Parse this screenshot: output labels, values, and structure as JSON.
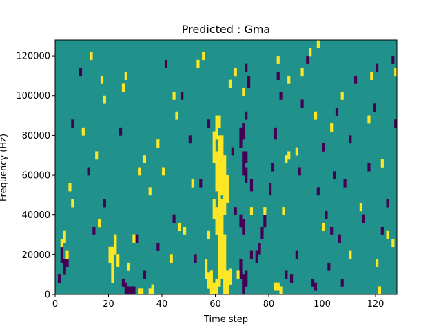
{
  "chart_data": {
    "type": "heatmap",
    "title": "Predicted : Gma",
    "xlabel": "Time step",
    "ylabel": "Frequency (Hz)",
    "xlim": [
      0,
      128
    ],
    "ylim": [
      0,
      128000
    ],
    "xticks": [
      0,
      20,
      40,
      60,
      80,
      100,
      120
    ],
    "yticks": [
      0,
      20000,
      40000,
      60000,
      80000,
      100000,
      120000
    ],
    "n_time_steps": 128,
    "n_freq_bins": 128,
    "levels": {
      "low": -1,
      "mid": 0,
      "high": 1
    },
    "colors": {
      "low": "#440154",
      "mid": "#21918c",
      "high": "#fde725"
    },
    "background_level": 0,
    "grid": false,
    "yellow_segments": [
      [
        60,
        0,
        8
      ],
      [
        59,
        0,
        6
      ],
      [
        58,
        0,
        12
      ],
      [
        57,
        3,
        8
      ],
      [
        56,
        8,
        10
      ],
      [
        61,
        4,
        28
      ],
      [
        62,
        8,
        40
      ],
      [
        63,
        0,
        30
      ],
      [
        64,
        0,
        12
      ],
      [
        65,
        5,
        8
      ],
      [
        60,
        30,
        14
      ],
      [
        59,
        38,
        10
      ],
      [
        60,
        52,
        20
      ],
      [
        59,
        66,
        16
      ],
      [
        60,
        78,
        12
      ],
      [
        61,
        30,
        50
      ],
      [
        62,
        50,
        30
      ],
      [
        63,
        40,
        30
      ],
      [
        64,
        46,
        14
      ],
      [
        61,
        84,
        6
      ],
      [
        20,
        16,
        8
      ],
      [
        21,
        10,
        14
      ],
      [
        22,
        20,
        10
      ],
      [
        21,
        6,
        6
      ],
      [
        23,
        14,
        6
      ],
      [
        31,
        0,
        3
      ],
      [
        32,
        0,
        3
      ],
      [
        35,
        0,
        3
      ],
      [
        36,
        0,
        5
      ],
      [
        82,
        2,
        4
      ],
      [
        83,
        2,
        4
      ],
      [
        84,
        0,
        4
      ],
      [
        85,
        40,
        4
      ],
      [
        86,
        66,
        4
      ],
      [
        87,
        68,
        4
      ],
      [
        2,
        24,
        4
      ],
      [
        3,
        26,
        6
      ],
      [
        4,
        18,
        4
      ],
      [
        5,
        52,
        4
      ],
      [
        6,
        44,
        4
      ],
      [
        16,
        34,
        4
      ],
      [
        17,
        106,
        4
      ],
      [
        18,
        96,
        4
      ],
      [
        25,
        102,
        4
      ],
      [
        26,
        108,
        4
      ],
      [
        27,
        12,
        4
      ],
      [
        29,
        26,
        4
      ],
      [
        31,
        60,
        4
      ],
      [
        33,
        66,
        4
      ],
      [
        35,
        50,
        4
      ],
      [
        38,
        74,
        4
      ],
      [
        40,
        60,
        4
      ],
      [
        44,
        98,
        4
      ],
      [
        45,
        88,
        4
      ],
      [
        48,
        30,
        4
      ],
      [
        51,
        54,
        4
      ],
      [
        53,
        114,
        4
      ],
      [
        55,
        118,
        4
      ],
      [
        57,
        28,
        4
      ],
      [
        65,
        104,
        4
      ],
      [
        67,
        110,
        4
      ],
      [
        70,
        100,
        4
      ],
      [
        73,
        40,
        4
      ],
      [
        78,
        40,
        4
      ],
      [
        83,
        116,
        4
      ],
      [
        87,
        106,
        4
      ],
      [
        90,
        70,
        4
      ],
      [
        92,
        110,
        4
      ],
      [
        95,
        120,
        4
      ],
      [
        97,
        88,
        4
      ],
      [
        98,
        124,
        4
      ],
      [
        100,
        32,
        4
      ],
      [
        103,
        82,
        4
      ],
      [
        107,
        98,
        4
      ],
      [
        110,
        18,
        4
      ],
      [
        114,
        42,
        4
      ],
      [
        117,
        86,
        4
      ],
      [
        118,
        108,
        4
      ],
      [
        120,
        14,
        4
      ],
      [
        121,
        0,
        4
      ],
      [
        122,
        64,
        4
      ],
      [
        124,
        28,
        4
      ],
      [
        126,
        24,
        4
      ],
      [
        127,
        110,
        4
      ],
      [
        10,
        80,
        4
      ],
      [
        13,
        118,
        4
      ],
      [
        15,
        68,
        4
      ],
      [
        43,
        16,
        4
      ],
      [
        46,
        32,
        4
      ],
      [
        68,
        8,
        4
      ]
    ],
    "purple_segments": [
      [
        27,
        0,
        4
      ],
      [
        28,
        0,
        4
      ],
      [
        29,
        0,
        4
      ],
      [
        26,
        0,
        6
      ],
      [
        25,
        4,
        4
      ],
      [
        3,
        10,
        8
      ],
      [
        4,
        14,
        8
      ],
      [
        2,
        16,
        8
      ],
      [
        1,
        6,
        4
      ],
      [
        70,
        0,
        10
      ],
      [
        71,
        4,
        8
      ],
      [
        69,
        8,
        10
      ],
      [
        70,
        30,
        8
      ],
      [
        69,
        34,
        6
      ],
      [
        70,
        60,
        12
      ],
      [
        71,
        56,
        8
      ],
      [
        69,
        74,
        10
      ],
      [
        70,
        78,
        8
      ],
      [
        71,
        66,
        6
      ],
      [
        71,
        88,
        4
      ],
      [
        72,
        104,
        6
      ],
      [
        71,
        112,
        4
      ],
      [
        73,
        52,
        6
      ],
      [
        73,
        18,
        4
      ],
      [
        75,
        16,
        6
      ],
      [
        76,
        20,
        6
      ],
      [
        77,
        28,
        6
      ],
      [
        78,
        34,
        8
      ],
      [
        80,
        50,
        6
      ],
      [
        81,
        62,
        4
      ],
      [
        82,
        78,
        6
      ],
      [
        84,
        98,
        4
      ],
      [
        83,
        108,
        4
      ],
      [
        86,
        8,
        4
      ],
      [
        88,
        6,
        4
      ],
      [
        90,
        18,
        4
      ],
      [
        91,
        60,
        4
      ],
      [
        92,
        94,
        4
      ],
      [
        94,
        116,
        4
      ],
      [
        96,
        4,
        4
      ],
      [
        97,
        2,
        4
      ],
      [
        98,
        50,
        4
      ],
      [
        100,
        72,
        4
      ],
      [
        101,
        38,
        4
      ],
      [
        102,
        12,
        4
      ],
      [
        103,
        30,
        4
      ],
      [
        104,
        58,
        4
      ],
      [
        105,
        90,
        4
      ],
      [
        106,
        26,
        4
      ],
      [
        107,
        4,
        4
      ],
      [
        108,
        54,
        4
      ],
      [
        110,
        76,
        4
      ],
      [
        112,
        106,
        4
      ],
      [
        115,
        36,
        4
      ],
      [
        117,
        62,
        4
      ],
      [
        119,
        92,
        4
      ],
      [
        120,
        112,
        4
      ],
      [
        122,
        30,
        4
      ],
      [
        124,
        44,
        4
      ],
      [
        126,
        116,
        4
      ],
      [
        127,
        84,
        4
      ],
      [
        6,
        84,
        4
      ],
      [
        9,
        110,
        4
      ],
      [
        12,
        60,
        4
      ],
      [
        14,
        30,
        4
      ],
      [
        18,
        44,
        4
      ],
      [
        24,
        80,
        4
      ],
      [
        30,
        26,
        4
      ],
      [
        33,
        8,
        4
      ],
      [
        38,
        22,
        4
      ],
      [
        41,
        114,
        4
      ],
      [
        44,
        36,
        4
      ],
      [
        47,
        98,
        4
      ],
      [
        50,
        76,
        4
      ],
      [
        52,
        16,
        4
      ],
      [
        54,
        54,
        4
      ],
      [
        57,
        84,
        4
      ],
      [
        66,
        70,
        4
      ],
      [
        67,
        40,
        4
      ]
    ]
  }
}
